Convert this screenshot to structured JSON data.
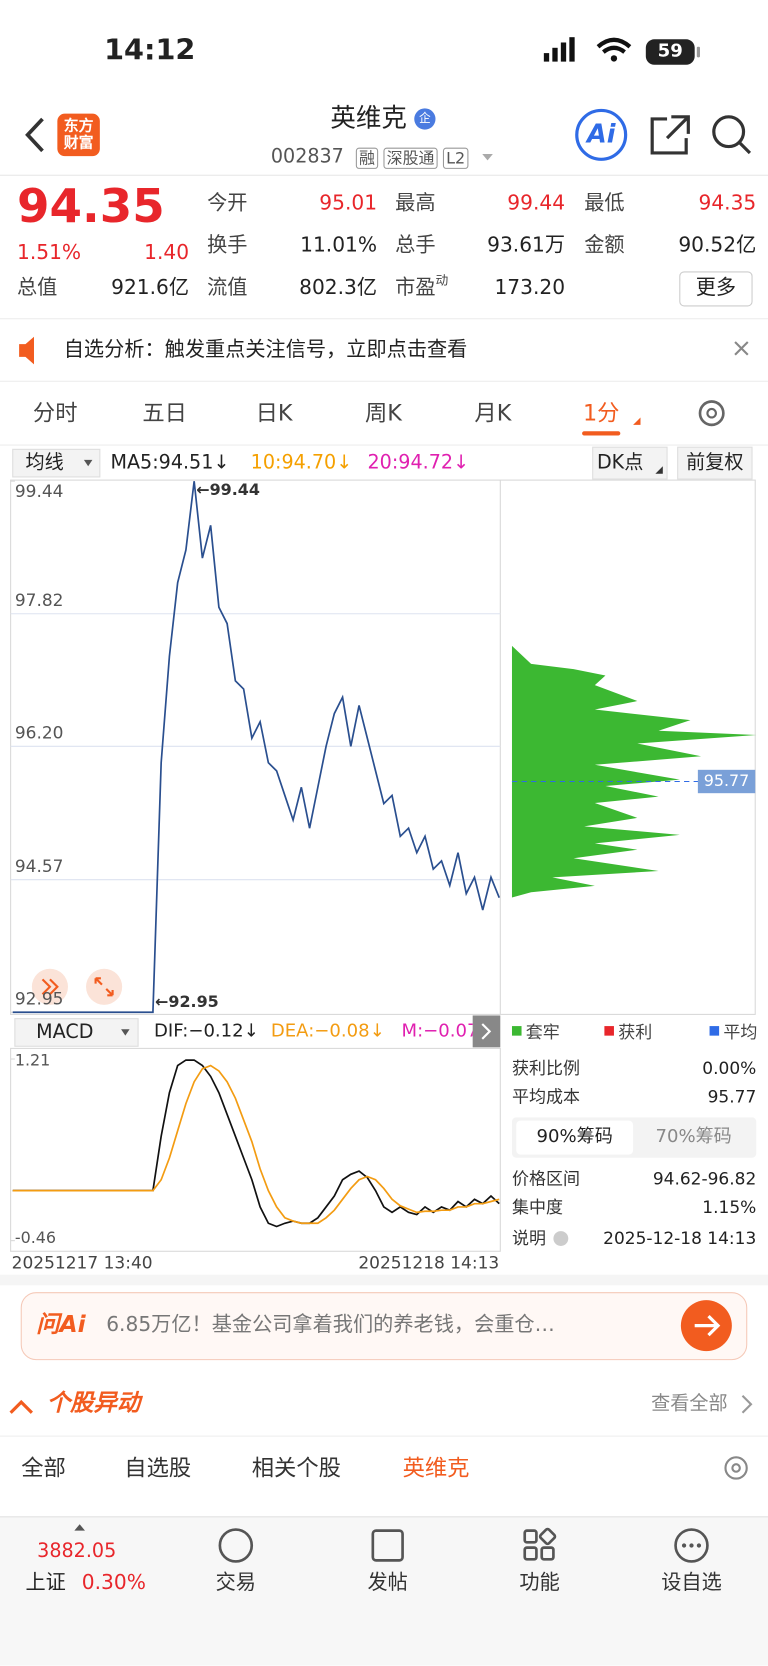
{
  "status": {
    "time": "14:12",
    "battery": "59"
  },
  "header": {
    "logo": "东方财富",
    "title": "英维克",
    "badge": "企",
    "code": "002837",
    "tags": [
      "融",
      "深股通",
      "L2"
    ],
    "ai": "Ai"
  },
  "quote": {
    "price": "94.35",
    "pct": "1.51%",
    "change": "1.40",
    "more": "更多",
    "fields": [
      {
        "label": "今开",
        "value": "95.01",
        "tone": "up"
      },
      {
        "label": "最高",
        "value": "99.44",
        "tone": "up"
      },
      {
        "label": "最低",
        "value": "94.35",
        "tone": "up"
      },
      {
        "label": "换手",
        "value": "11.01%"
      },
      {
        "label": "总手",
        "value": "93.61万"
      },
      {
        "label": "金额",
        "value": "90.52亿"
      },
      {
        "label": "总值",
        "value": "921.6亿"
      },
      {
        "label": "流值",
        "value": "802.3亿"
      },
      {
        "label": "市盈",
        "sup": "动",
        "value": "173.20"
      }
    ]
  },
  "notice": "自选分析：触发重点关注信号，立即点击查看",
  "tabs": {
    "items": [
      "分时",
      "五日",
      "日K",
      "周K",
      "月K",
      "1分"
    ],
    "active": 5
  },
  "indicators": {
    "selector": "均线",
    "ma5": "MA5:94.51↓",
    "ma10": "10:94.70↓",
    "ma20": "20:94.72↓",
    "dk": "DK点",
    "adjust": "前复权"
  },
  "chart_data": [
    {
      "type": "line",
      "name": "price",
      "color": "#2a4f8f",
      "ylim": [
        92.95,
        99.44
      ],
      "yticks": [
        99.44,
        97.82,
        96.2,
        94.57,
        92.95
      ],
      "yticks_labels": [
        "99.44",
        "97.82",
        "96.20",
        "94.57",
        "92.95"
      ],
      "high_label": "←99.44",
      "low_label": "←92.95",
      "chip_avg": 95.77,
      "chip_avg_label": "95.77",
      "values": [
        92.95,
        92.95,
        92.95,
        92.95,
        92.95,
        92.95,
        92.95,
        92.95,
        92.95,
        92.95,
        92.95,
        92.95,
        92.95,
        92.95,
        92.95,
        92.95,
        92.95,
        92.95,
        96.0,
        97.3,
        98.2,
        98.6,
        99.44,
        98.5,
        98.9,
        97.9,
        97.7,
        97.0,
        96.9,
        96.3,
        96.5,
        96.0,
        95.9,
        95.6,
        95.3,
        95.7,
        95.2,
        95.7,
        96.2,
        96.6,
        96.8,
        96.2,
        96.7,
        96.3,
        95.9,
        95.5,
        95.6,
        95.1,
        95.2,
        94.9,
        95.1,
        94.7,
        94.8,
        94.5,
        94.9,
        94.4,
        94.6,
        94.2,
        94.6,
        94.35
      ]
    },
    {
      "type": "line",
      "name": "MACD",
      "selector": "MACD",
      "dif_label": "DIF:−0.12↓",
      "dea_label": "DEA:−0.08↓",
      "m_label": "M:−0.07",
      "ylim": [
        -0.46,
        1.21
      ],
      "yticks": [
        1.21,
        -0.46
      ],
      "x_labels": [
        "20251217 13:40",
        "20251218 14:13"
      ],
      "series": [
        {
          "name": "DIF",
          "color": "#111111",
          "values": [
            0,
            0,
            0,
            0,
            0,
            0,
            0,
            0,
            0,
            0,
            0,
            0,
            0,
            0,
            0,
            0,
            0,
            0,
            0.5,
            0.9,
            1.15,
            1.2,
            1.2,
            1.15,
            1.05,
            0.9,
            0.7,
            0.5,
            0.3,
            0.1,
            -0.15,
            -0.3,
            -0.33,
            -0.3,
            -0.28,
            -0.3,
            -0.3,
            -0.25,
            -0.15,
            -0.05,
            0.1,
            0.15,
            0.18,
            0.12,
            0.0,
            -0.15,
            -0.2,
            -0.15,
            -0.2,
            -0.22,
            -0.15,
            -0.2,
            -0.15,
            -0.18,
            -0.1,
            -0.15,
            -0.08,
            -0.12,
            -0.05,
            -0.12
          ]
        },
        {
          "name": "DEA",
          "color": "#f39c12",
          "values": [
            0,
            0,
            0,
            0,
            0,
            0,
            0,
            0,
            0,
            0,
            0,
            0,
            0,
            0,
            0,
            0,
            0,
            0,
            0.1,
            0.3,
            0.55,
            0.8,
            1.0,
            1.12,
            1.15,
            1.1,
            1.0,
            0.85,
            0.65,
            0.45,
            0.2,
            0.0,
            -0.15,
            -0.25,
            -0.28,
            -0.3,
            -0.3,
            -0.3,
            -0.25,
            -0.18,
            -0.08,
            0.02,
            0.1,
            0.13,
            0.1,
            0.02,
            -0.08,
            -0.14,
            -0.17,
            -0.2,
            -0.19,
            -0.19,
            -0.18,
            -0.18,
            -0.15,
            -0.15,
            -0.12,
            -0.12,
            -0.1,
            -0.08
          ]
        }
      ]
    }
  ],
  "chips": {
    "legend": [
      "套牢",
      "获利",
      "平均"
    ],
    "rows": [
      {
        "label": "获利比例",
        "value": "0.00%"
      },
      {
        "label": "平均成本",
        "value": "95.77"
      }
    ],
    "tabs": [
      "90%筹码",
      "70%筹码"
    ],
    "rows2": [
      {
        "label": "价格区间",
        "value": "94.62-96.82"
      },
      {
        "label": "集中度",
        "value": "1.15%"
      },
      {
        "label": "说明",
        "value": "2025-12-18 14:13"
      }
    ]
  },
  "ai_banner": {
    "brand": "问Ai",
    "text": "6.85万亿！基金公司拿着我们的养老钱，会重仓…"
  },
  "section": {
    "title": "个股异动",
    "more": "查看全部",
    "tabs": [
      "全部",
      "自选股",
      "相关个股",
      "英维克"
    ],
    "active": 3
  },
  "bottom_nav": {
    "index_value": "3882.05",
    "index_name": "上证",
    "index_pct": "0.30%",
    "items": [
      "交易",
      "发帖",
      "功能",
      "设自选"
    ]
  }
}
